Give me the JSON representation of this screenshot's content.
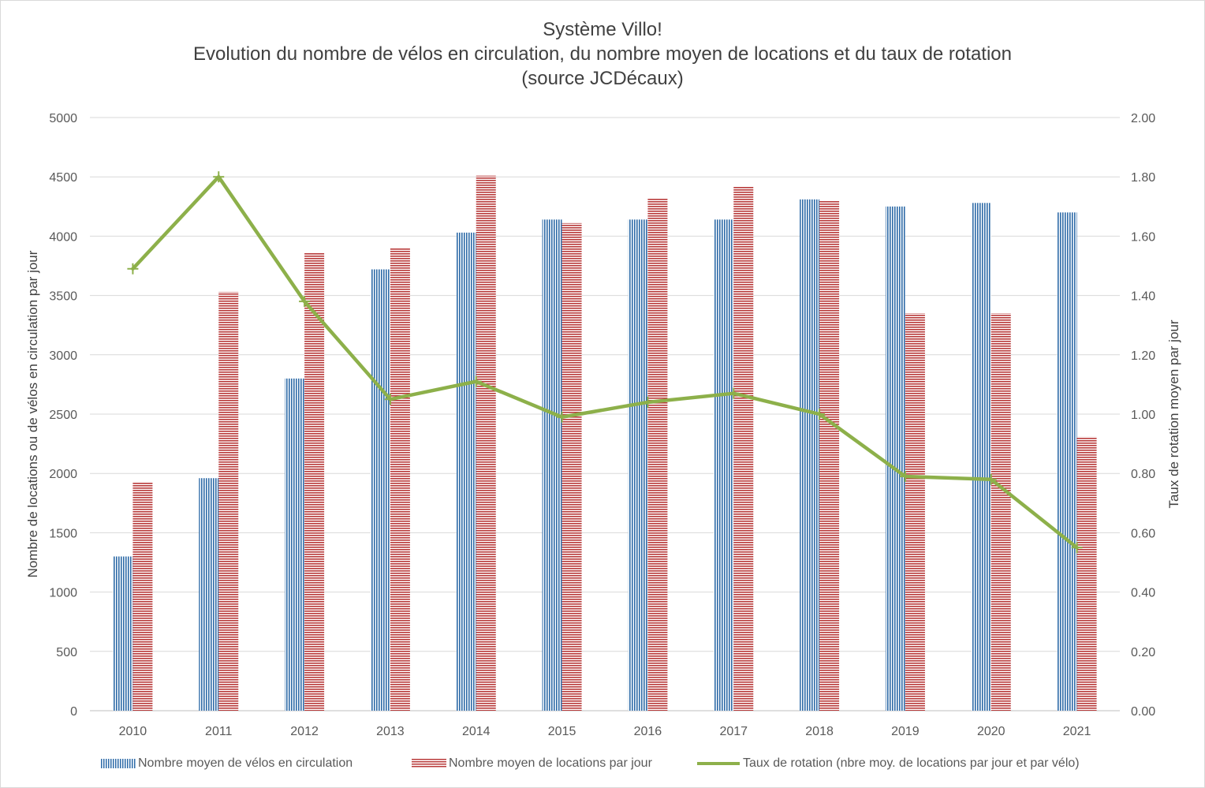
{
  "title": {
    "line1": "Système Villo!",
    "line2": "Evolution du nombre de vélos en circulation, du nombre moyen de locations et du taux de rotation",
    "line3": "(source JCDécaux)"
  },
  "chart_data": {
    "type": "bar",
    "combo": "bar+line (secondary axis)",
    "categories": [
      "2010",
      "2011",
      "2012",
      "2013",
      "2014",
      "2015",
      "2016",
      "2017",
      "2018",
      "2019",
      "2020",
      "2021"
    ],
    "series": [
      {
        "name": "Nombre moyen de vélos en circulation",
        "type": "bar",
        "axis": "left",
        "color": "#2e6ba8",
        "pattern": "vertical stripes",
        "values": [
          1300,
          1960,
          2800,
          3720,
          4030,
          4140,
          4140,
          4140,
          4310,
          4250,
          4280,
          4200
        ]
      },
      {
        "name": "Nombre moyen de locations par jour",
        "type": "bar",
        "axis": "left",
        "color": "#b83a3a",
        "pattern": "horizontal stripes",
        "values": [
          1930,
          3530,
          3860,
          3900,
          4510,
          4110,
          4320,
          4420,
          4300,
          3350,
          3350,
          2310
        ]
      },
      {
        "name": "Taux de rotation (nbre moy. de locations par jour et par vélo)",
        "type": "line",
        "axis": "right",
        "color": "#8db04a",
        "values": [
          1.49,
          1.8,
          1.38,
          1.05,
          1.11,
          0.99,
          1.04,
          1.07,
          1.0,
          0.79,
          0.78,
          0.55
        ]
      }
    ],
    "y_left": {
      "label": "Nombre de locations ou de vélos en circulation par jour",
      "range": [
        0,
        5000
      ],
      "ticks": [
        "0",
        "500",
        "1000",
        "1500",
        "2000",
        "2500",
        "3000",
        "3500",
        "4000",
        "4500",
        "5000"
      ]
    },
    "y_right": {
      "label": "Taux de rotation moyen par jour",
      "range": [
        0,
        2
      ],
      "ticks": [
        "0.00",
        "0.20",
        "0.40",
        "0.60",
        "0.80",
        "1.00",
        "1.20",
        "1.40",
        "1.60",
        "1.80",
        "2.00"
      ]
    },
    "grid": true,
    "legend_position": "bottom"
  }
}
